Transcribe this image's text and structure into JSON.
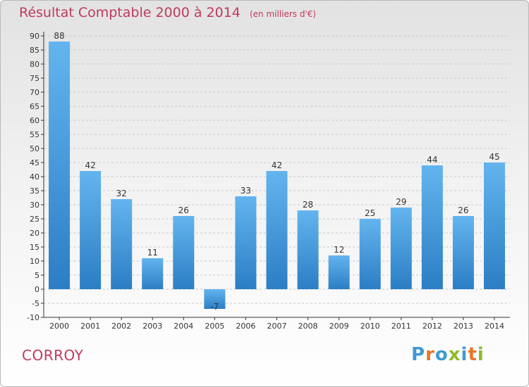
{
  "header": {
    "title": "Résultat Comptable 2000 à 2014",
    "subtitle": "(en milliers d'€)"
  },
  "footer": {
    "commune": "CORROY",
    "logo": "Proxiti",
    "logo_colors": [
      "#3e9ad6",
      "#e8762a",
      "#3e9ad6",
      "#8dbb2a",
      "#3e9ad6",
      "#e8762a",
      "#8dbb2a"
    ]
  },
  "colors": {
    "accent": "#c03a5c",
    "bar_light": "#63b4ee",
    "bar_dark": "#2b7ec4",
    "grid": "#c8c8c8",
    "axis": "#333333"
  },
  "chart_data": {
    "type": "bar",
    "title": "Résultat Comptable 2000 à 2014",
    "xlabel": "",
    "ylabel": "",
    "ylim": [
      -10,
      90
    ],
    "yticks": [
      -10,
      -5,
      0,
      5,
      10,
      15,
      20,
      25,
      30,
      35,
      40,
      45,
      50,
      55,
      60,
      65,
      70,
      75,
      80,
      85,
      90
    ],
    "grid": true,
    "categories": [
      "2000",
      "2001",
      "2002",
      "2003",
      "2004",
      "2005",
      "2006",
      "2007",
      "2008",
      "2009",
      "2010",
      "2011",
      "2012",
      "2013",
      "2014"
    ],
    "values": [
      88,
      42,
      32,
      11,
      26,
      -7,
      33,
      42,
      28,
      12,
      25,
      29,
      44,
      26,
      45
    ]
  }
}
